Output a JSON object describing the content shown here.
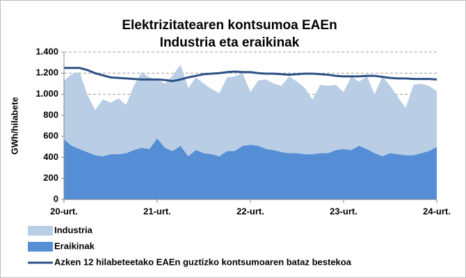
{
  "chart_data": {
    "type": "area",
    "stacked": true,
    "title": "Elektrizitatearen kontsumoa EAEn",
    "subtitle": "Industria eta eraikinak",
    "ylabel": "GWh/hilabete",
    "categories": [
      "20-urt.",
      null,
      null,
      null,
      null,
      null,
      null,
      null,
      null,
      null,
      null,
      null,
      "21-urt.",
      null,
      null,
      null,
      null,
      null,
      null,
      null,
      null,
      null,
      null,
      null,
      "22-urt.",
      null,
      null,
      null,
      null,
      null,
      null,
      null,
      null,
      null,
      null,
      null,
      "23-urt.",
      null,
      null,
      null,
      null,
      null,
      null,
      null,
      null,
      null,
      null,
      null,
      "24-urt."
    ],
    "ylim": [
      0,
      1400
    ],
    "yticks": [
      0,
      200,
      400,
      600,
      800,
      {
        "value": 1000,
        "label": "1.000"
      },
      {
        "value": 1200,
        "label": "1.200"
      },
      {
        "value": 1400,
        "label": "1.400"
      }
    ],
    "grid": true,
    "legend": "bottom",
    "series": [
      {
        "name": "Industria",
        "color": "#b9cde5",
        "values": [
          560,
          680,
          730,
          550,
          430,
          540,
          490,
          530,
          460,
          610,
          720,
          680,
          560,
          610,
          720,
          770,
          650,
          690,
          660,
          620,
          600,
          700,
          710,
          690,
          500,
          620,
          660,
          630,
          630,
          730,
          680,
          630,
          520,
          650,
          640,
          620,
          540,
          700,
          610,
          690,
          560,
          760,
          640,
          540,
          450,
          670,
          660,
          620,
          530
        ]
      },
      {
        "name": "Eraikinak",
        "color": "#558ed5",
        "values": [
          570,
          510,
          480,
          450,
          420,
          410,
          430,
          430,
          440,
          470,
          490,
          480,
          580,
          490,
          460,
          510,
          410,
          470,
          440,
          430,
          410,
          460,
          460,
          510,
          520,
          510,
          480,
          470,
          450,
          440,
          440,
          430,
          430,
          440,
          440,
          470,
          480,
          470,
          510,
          480,
          440,
          410,
          440,
          430,
          420,
          420,
          440,
          460,
          500
        ]
      },
      {
        "name": "Azken 12 hilabeteetako EAEn guztizko kontsumoaren bataz bestekoa",
        "type": "line",
        "color": "#2c5085",
        "values": [
          1250,
          1250,
          1250,
          1230,
          1200,
          1180,
          1160,
          1155,
          1150,
          1145,
          1140,
          1140,
          1140,
          1135,
          1125,
          1140,
          1160,
          1175,
          1190,
          1195,
          1200,
          1210,
          1215,
          1210,
          1210,
          1200,
          1195,
          1195,
          1190,
          1185,
          1190,
          1195,
          1195,
          1190,
          1185,
          1175,
          1170,
          1170,
          1170,
          1175,
          1175,
          1165,
          1155,
          1150,
          1150,
          1145,
          1145,
          1145,
          1140
        ]
      }
    ]
  }
}
